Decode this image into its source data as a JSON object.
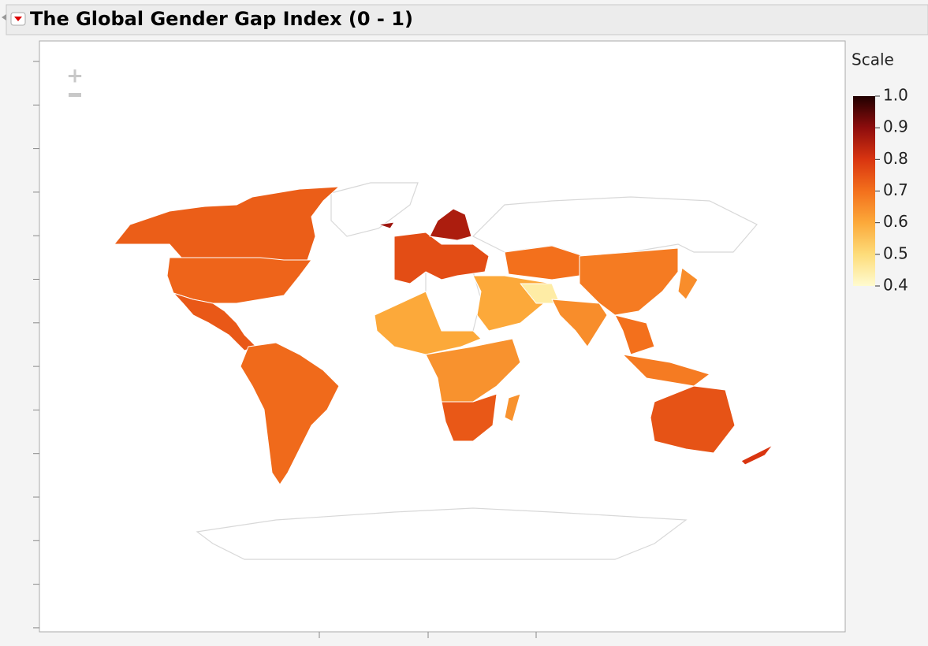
{
  "title": "The Global Gender Gap Index (0 - 1)",
  "legend": {
    "title": "Scale",
    "range": [
      0.4,
      1
    ],
    "ticks": [
      {
        "value": 1,
        "label": "1.0"
      },
      0.9,
      0.8,
      0.7,
      0.6,
      0.5,
      0.4
    ],
    "colors": [
      "#fffbd0",
      "#fddc7a",
      "#fca93a",
      "#f3701c",
      "#d93510",
      "#8e0d0d",
      "#200000"
    ]
  },
  "map": {
    "values": [
      0.73,
      0.72,
      0.74,
      0.71,
      0.76,
      0.86,
      0.88,
      0.6,
      0.45,
      0.7,
      0.68,
      0.65,
      0.7,
      0.68,
      0.65,
      0.6,
      0.64,
      0.74,
      0.64,
      0.75,
      0.8
    ]
  }
}
